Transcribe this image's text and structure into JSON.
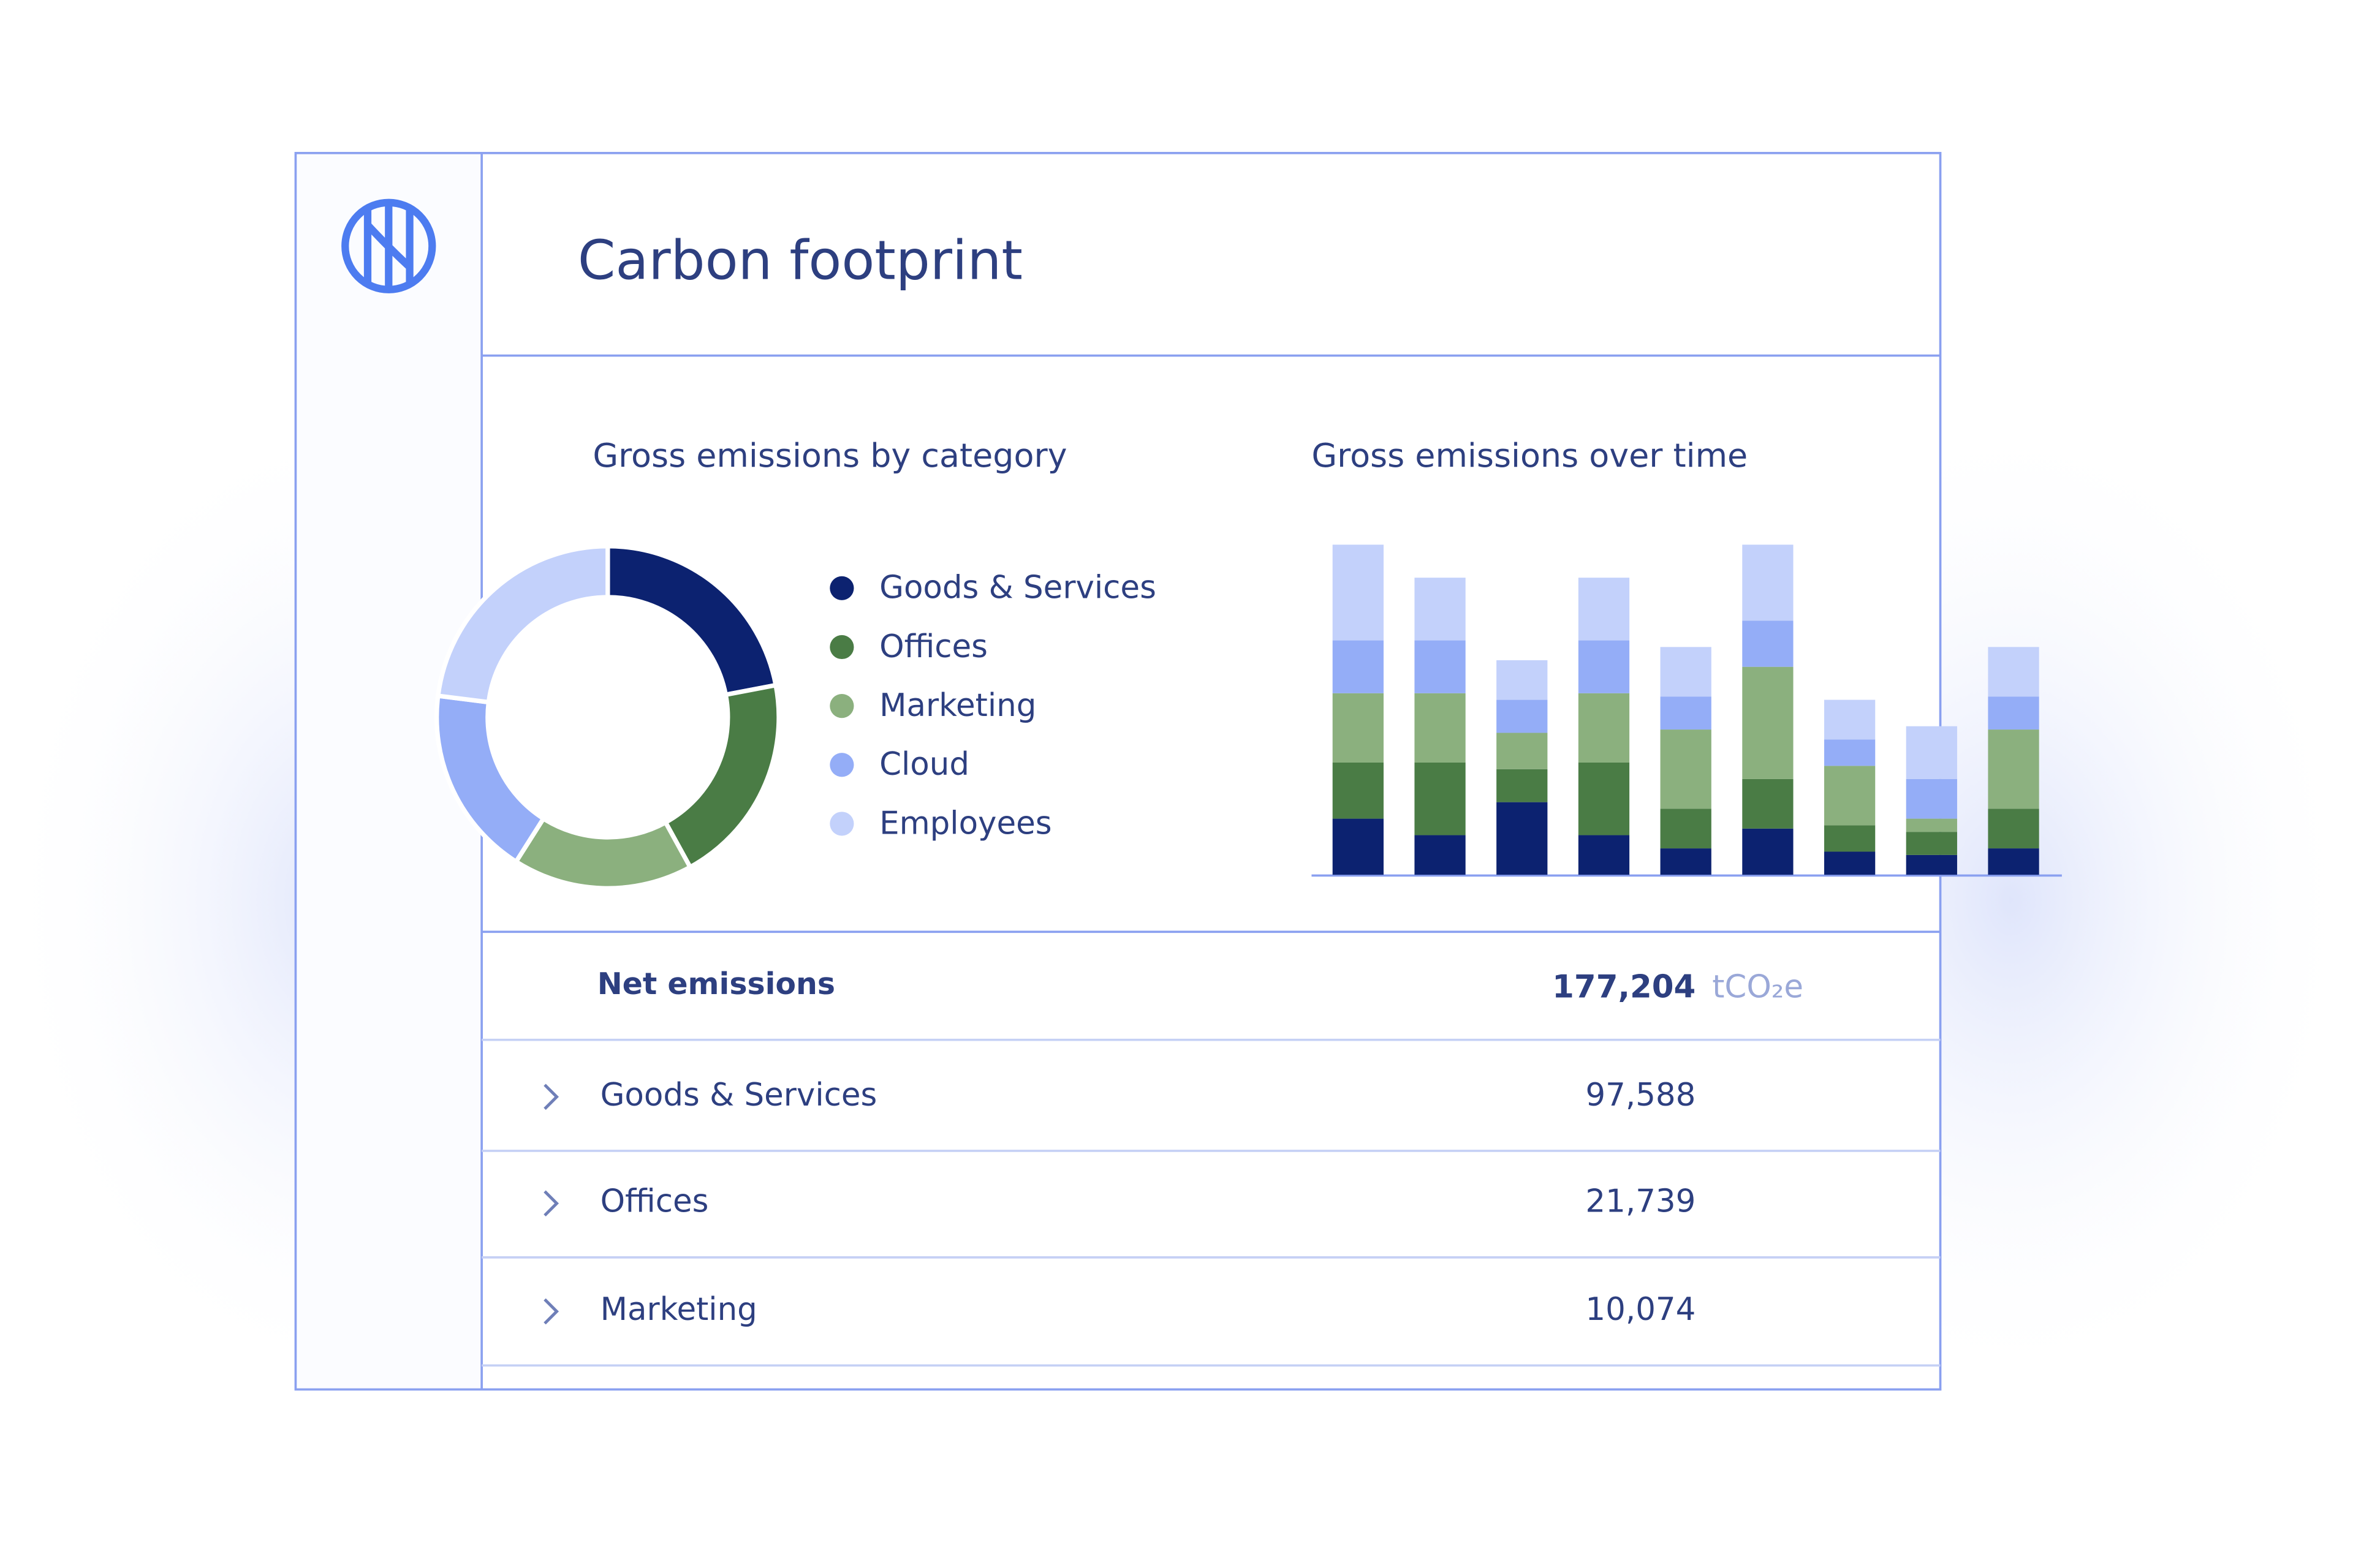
{
  "header": {
    "title": "Carbon footprint"
  },
  "donut_chart": {
    "type": "pie",
    "title": "Gross emissions by category",
    "categories": [
      "Goods & Services",
      "Offices",
      "Marketing",
      "Cloud",
      "Employees"
    ],
    "values": [
      22,
      20,
      17,
      18,
      23
    ],
    "colors": [
      "#0c2270",
      "#4a7c45",
      "#8bb07e",
      "#94adf7",
      "#c3d1fb"
    ]
  },
  "bar_chart": {
    "type": "bar",
    "stacked": true,
    "title": "Gross emissions over time",
    "ylim": [
      0,
      100
    ],
    "series": [
      {
        "color": "#0c2270",
        "values": [
          17,
          12,
          22,
          12,
          8,
          14,
          7,
          6,
          8
        ]
      },
      {
        "color": "#4a7c45",
        "values": [
          17,
          22,
          10,
          22,
          12,
          15,
          8,
          7,
          12
        ]
      },
      {
        "color": "#8bb07e",
        "values": [
          21,
          21,
          11,
          21,
          24,
          34,
          18,
          4,
          24
        ]
      },
      {
        "color": "#94adf7",
        "values": [
          16,
          16,
          10,
          16,
          10,
          14,
          8,
          12,
          10
        ]
      },
      {
        "color": "#c3d1fb",
        "values": [
          29,
          19,
          12,
          19,
          15,
          23,
          12,
          16,
          15
        ]
      }
    ]
  },
  "table": {
    "rows": [
      [
        "Net emissions",
        "177,204",
        "tCO₂e"
      ],
      [
        "Goods & Services",
        "97,588"
      ],
      [
        "Offices",
        "21,739"
      ],
      [
        "Marketing",
        "10,074"
      ]
    ]
  }
}
